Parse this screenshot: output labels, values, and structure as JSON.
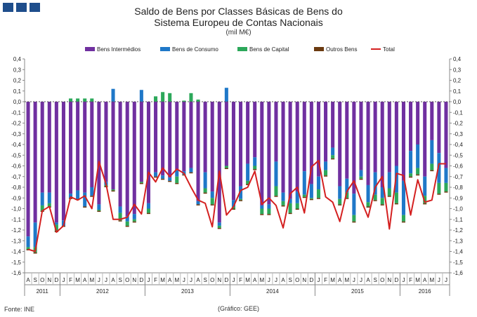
{
  "title_line1": "Saldo de Bens por Classes Básicas de Bens do",
  "title_line2": "Sistema Europeu de Contas Nacionais",
  "unit": "(mil M€)",
  "source": "Fonte: INE",
  "credit": "(Gráfico: GEE)",
  "colors": {
    "intermedios": "#7030a0",
    "consumo": "#1f78c8",
    "capital": "#2ca85a",
    "outros": "#6b3a10",
    "total": "#d42020",
    "logo": "#1f4e8c"
  },
  "chart_data": {
    "type": "bar",
    "stacked": true,
    "ylim": [
      -1.6,
      0.4
    ],
    "yticks": [
      "0,4",
      "0,3",
      "0,2",
      "0,1",
      "0,0",
      "-0,1",
      "-0,2",
      "-0,3",
      "-0,4",
      "-0,5",
      "-0,6",
      "-0,7",
      "-0,8",
      "-0,9",
      "-1,0",
      "-1,1",
      "-1,2",
      "-1,3",
      "-1,4",
      "-1,5",
      "-1,6"
    ],
    "categories": [
      "A",
      "S",
      "O",
      "N",
      "D",
      "J",
      "F",
      "M",
      "A",
      "M",
      "J",
      "J",
      "A",
      "S",
      "O",
      "N",
      "D",
      "J",
      "F",
      "M",
      "A",
      "M",
      "J",
      "J",
      "A",
      "S",
      "O",
      "N",
      "D",
      "J",
      "F",
      "M",
      "A",
      "M",
      "J",
      "J",
      "A",
      "S",
      "O",
      "N",
      "D",
      "J",
      "F",
      "M",
      "A",
      "M",
      "J",
      "J",
      "A",
      "S",
      "O",
      "N",
      "D",
      "J",
      "F",
      "M",
      "A",
      "M",
      "J",
      "J"
    ],
    "years": [
      {
        "label": "2011",
        "start": 0,
        "end": 4
      },
      {
        "label": "2012",
        "start": 5,
        "end": 16
      },
      {
        "label": "2013",
        "start": 17,
        "end": 28
      },
      {
        "label": "2014",
        "start": 29,
        "end": 40
      },
      {
        "label": "2015",
        "start": 41,
        "end": 52
      },
      {
        "label": "2016",
        "start": 53,
        "end": 59
      }
    ],
    "series": [
      {
        "name": "Bens Intermédios",
        "key": "intermedios",
        "values": [
          -1.26,
          -1.13,
          -0.85,
          -0.85,
          -1.13,
          -1.11,
          -0.86,
          -0.83,
          -0.85,
          -0.8,
          -0.96,
          -0.75,
          -0.82,
          -0.98,
          -1.07,
          -1.05,
          -0.75,
          -0.95,
          -0.66,
          -0.69,
          -0.71,
          -0.64,
          -0.65,
          -0.62,
          -0.93,
          -0.66,
          -0.84,
          -1.13,
          -0.6,
          -0.92,
          -0.79,
          -0.58,
          -0.52,
          -0.97,
          -0.96,
          -0.56,
          -0.85,
          -0.91,
          -0.84,
          -0.65,
          -0.77,
          -0.7,
          -0.56,
          -0.43,
          -0.79,
          -0.72,
          -0.86,
          -0.64,
          -0.78,
          -0.66,
          -0.8,
          -0.66,
          -0.6,
          -0.74,
          -0.46,
          -0.4,
          -0.7,
          -0.36,
          -0.48,
          -0.62
        ]
      },
      {
        "name": "Bens de Consumo",
        "key": "consumo",
        "values": [
          -0.1,
          -0.23,
          -0.12,
          -0.1,
          -0.02,
          -0.05,
          -0.04,
          -0.08,
          -0.13,
          -0.08,
          -0.05,
          -0.03,
          0.12,
          -0.06,
          -0.05,
          -0.05,
          0.11,
          -0.05,
          -0.04,
          -0.03,
          -0.03,
          -0.06,
          -0.03,
          -0.04,
          -0.03,
          -0.15,
          -0.06,
          -0.03,
          0.13,
          -0.06,
          -0.12,
          -0.16,
          -0.08,
          -0.03,
          -0.04,
          -0.23,
          -0.08,
          -0.04,
          -0.11,
          -0.22,
          -0.13,
          -0.12,
          -0.08,
          -0.07,
          -0.12,
          -0.13,
          -0.2,
          -0.06,
          -0.16,
          -0.21,
          -0.1,
          -0.15,
          -0.25,
          -0.32,
          -0.21,
          -0.22,
          -0.18,
          -0.22,
          -0.28,
          -0.14
        ]
      },
      {
        "name": "Bens de Capital",
        "key": "capital",
        "values": [
          -0.02,
          -0.05,
          -0.05,
          -0.03,
          -0.06,
          0.0,
          0.03,
          0.03,
          0.03,
          0.03,
          -0.01,
          -0.01,
          -0.01,
          -0.07,
          -0.04,
          -0.02,
          -0.01,
          -0.04,
          0.05,
          0.09,
          0.08,
          -0.06,
          0.01,
          0.08,
          0.02,
          -0.04,
          -0.06,
          -0.02,
          -0.02,
          -0.02,
          -0.01,
          -0.03,
          -0.03,
          -0.05,
          -0.05,
          -0.09,
          -0.04,
          -0.09,
          -0.05,
          -0.02,
          -0.01,
          -0.08,
          -0.05,
          -0.03,
          -0.05,
          -0.05,
          -0.06,
          -0.02,
          -0.04,
          -0.05,
          -0.06,
          -0.07,
          -0.1,
          -0.06,
          -0.03,
          -0.06,
          -0.07,
          -0.06,
          -0.1,
          -0.08
        ]
      },
      {
        "name": "Outros Bens",
        "key": "outros",
        "values": [
          -0.01,
          -0.01,
          -0.01,
          -0.01,
          -0.01,
          -0.01,
          -0.01,
          -0.01,
          -0.01,
          -0.01,
          -0.01,
          -0.01,
          -0.01,
          -0.01,
          -0.01,
          -0.01,
          -0.01,
          -0.01,
          -0.01,
          -0.01,
          -0.01,
          -0.01,
          -0.01,
          -0.01,
          -0.01,
          -0.01,
          -0.01,
          -0.01,
          -0.01,
          -0.01,
          -0.01,
          -0.01,
          -0.01,
          -0.01,
          -0.01,
          -0.01,
          -0.01,
          -0.01,
          -0.01,
          -0.01,
          -0.01,
          -0.01,
          -0.01,
          -0.01,
          -0.01,
          -0.01,
          -0.01,
          -0.01,
          -0.01,
          -0.01,
          -0.01,
          -0.01,
          -0.01,
          -0.01,
          -0.01,
          -0.01,
          -0.01,
          -0.01,
          -0.01,
          -0.01
        ]
      },
      {
        "name": "Total",
        "key": "total",
        "type": "line",
        "values": [
          -1.38,
          -1.4,
          -1.02,
          -0.98,
          -1.22,
          -1.16,
          -0.89,
          -0.92,
          -0.88,
          -1.0,
          -0.56,
          -0.77,
          -1.1,
          -1.1,
          -1.08,
          -0.96,
          -1.05,
          -0.66,
          -0.75,
          -0.62,
          -0.7,
          -0.63,
          -0.67,
          -0.8,
          -0.92,
          -0.95,
          -1.17,
          -0.65,
          -1.06,
          -0.98,
          -0.83,
          -0.8,
          -0.65,
          -0.96,
          -0.9,
          -0.97,
          -1.18,
          -0.86,
          -0.8,
          -1.04,
          -0.61,
          -0.55,
          -0.89,
          -0.94,
          -1.12,
          -0.84,
          -0.74,
          -0.92,
          -1.08,
          -0.8,
          -0.7,
          -1.19,
          -0.67,
          -0.69,
          -1.06,
          -0.73,
          -0.94,
          -0.92,
          -0.58,
          -0.58
        ]
      }
    ]
  }
}
